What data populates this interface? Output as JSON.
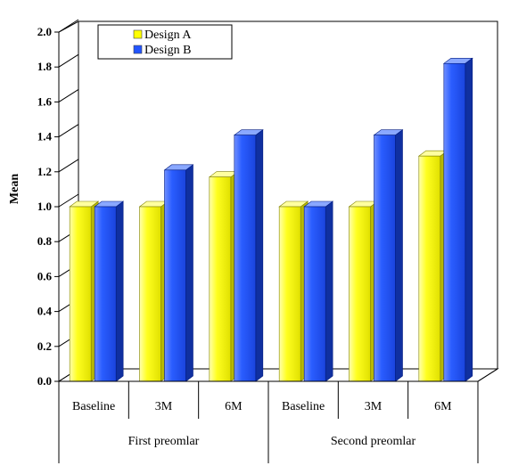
{
  "chart_data": {
    "type": "bar",
    "ylabel": "Mean",
    "ylim": [
      0,
      2.0
    ],
    "yticks": [
      "0.0",
      "0.2",
      "0.4",
      "0.6",
      "0.8",
      "1.0",
      "1.2",
      "1.4",
      "1.6",
      "1.8",
      "2.0"
    ],
    "categories": [
      "Baseline",
      "3M",
      "6M",
      "Baseline",
      "3M",
      "6M"
    ],
    "groups": [
      "First preomlar",
      "Second preomlar"
    ],
    "series": [
      {
        "name": "Design A",
        "color": "#ffff00",
        "values": [
          1.0,
          1.0,
          1.17,
          1.0,
          1.0,
          1.29
        ]
      },
      {
        "name": "Design B",
        "color": "#2255ff",
        "values": [
          1.0,
          1.21,
          1.41,
          1.0,
          1.41,
          1.82
        ]
      }
    ],
    "grid": false,
    "legend_position": "top-left",
    "style": "3d-bars"
  }
}
